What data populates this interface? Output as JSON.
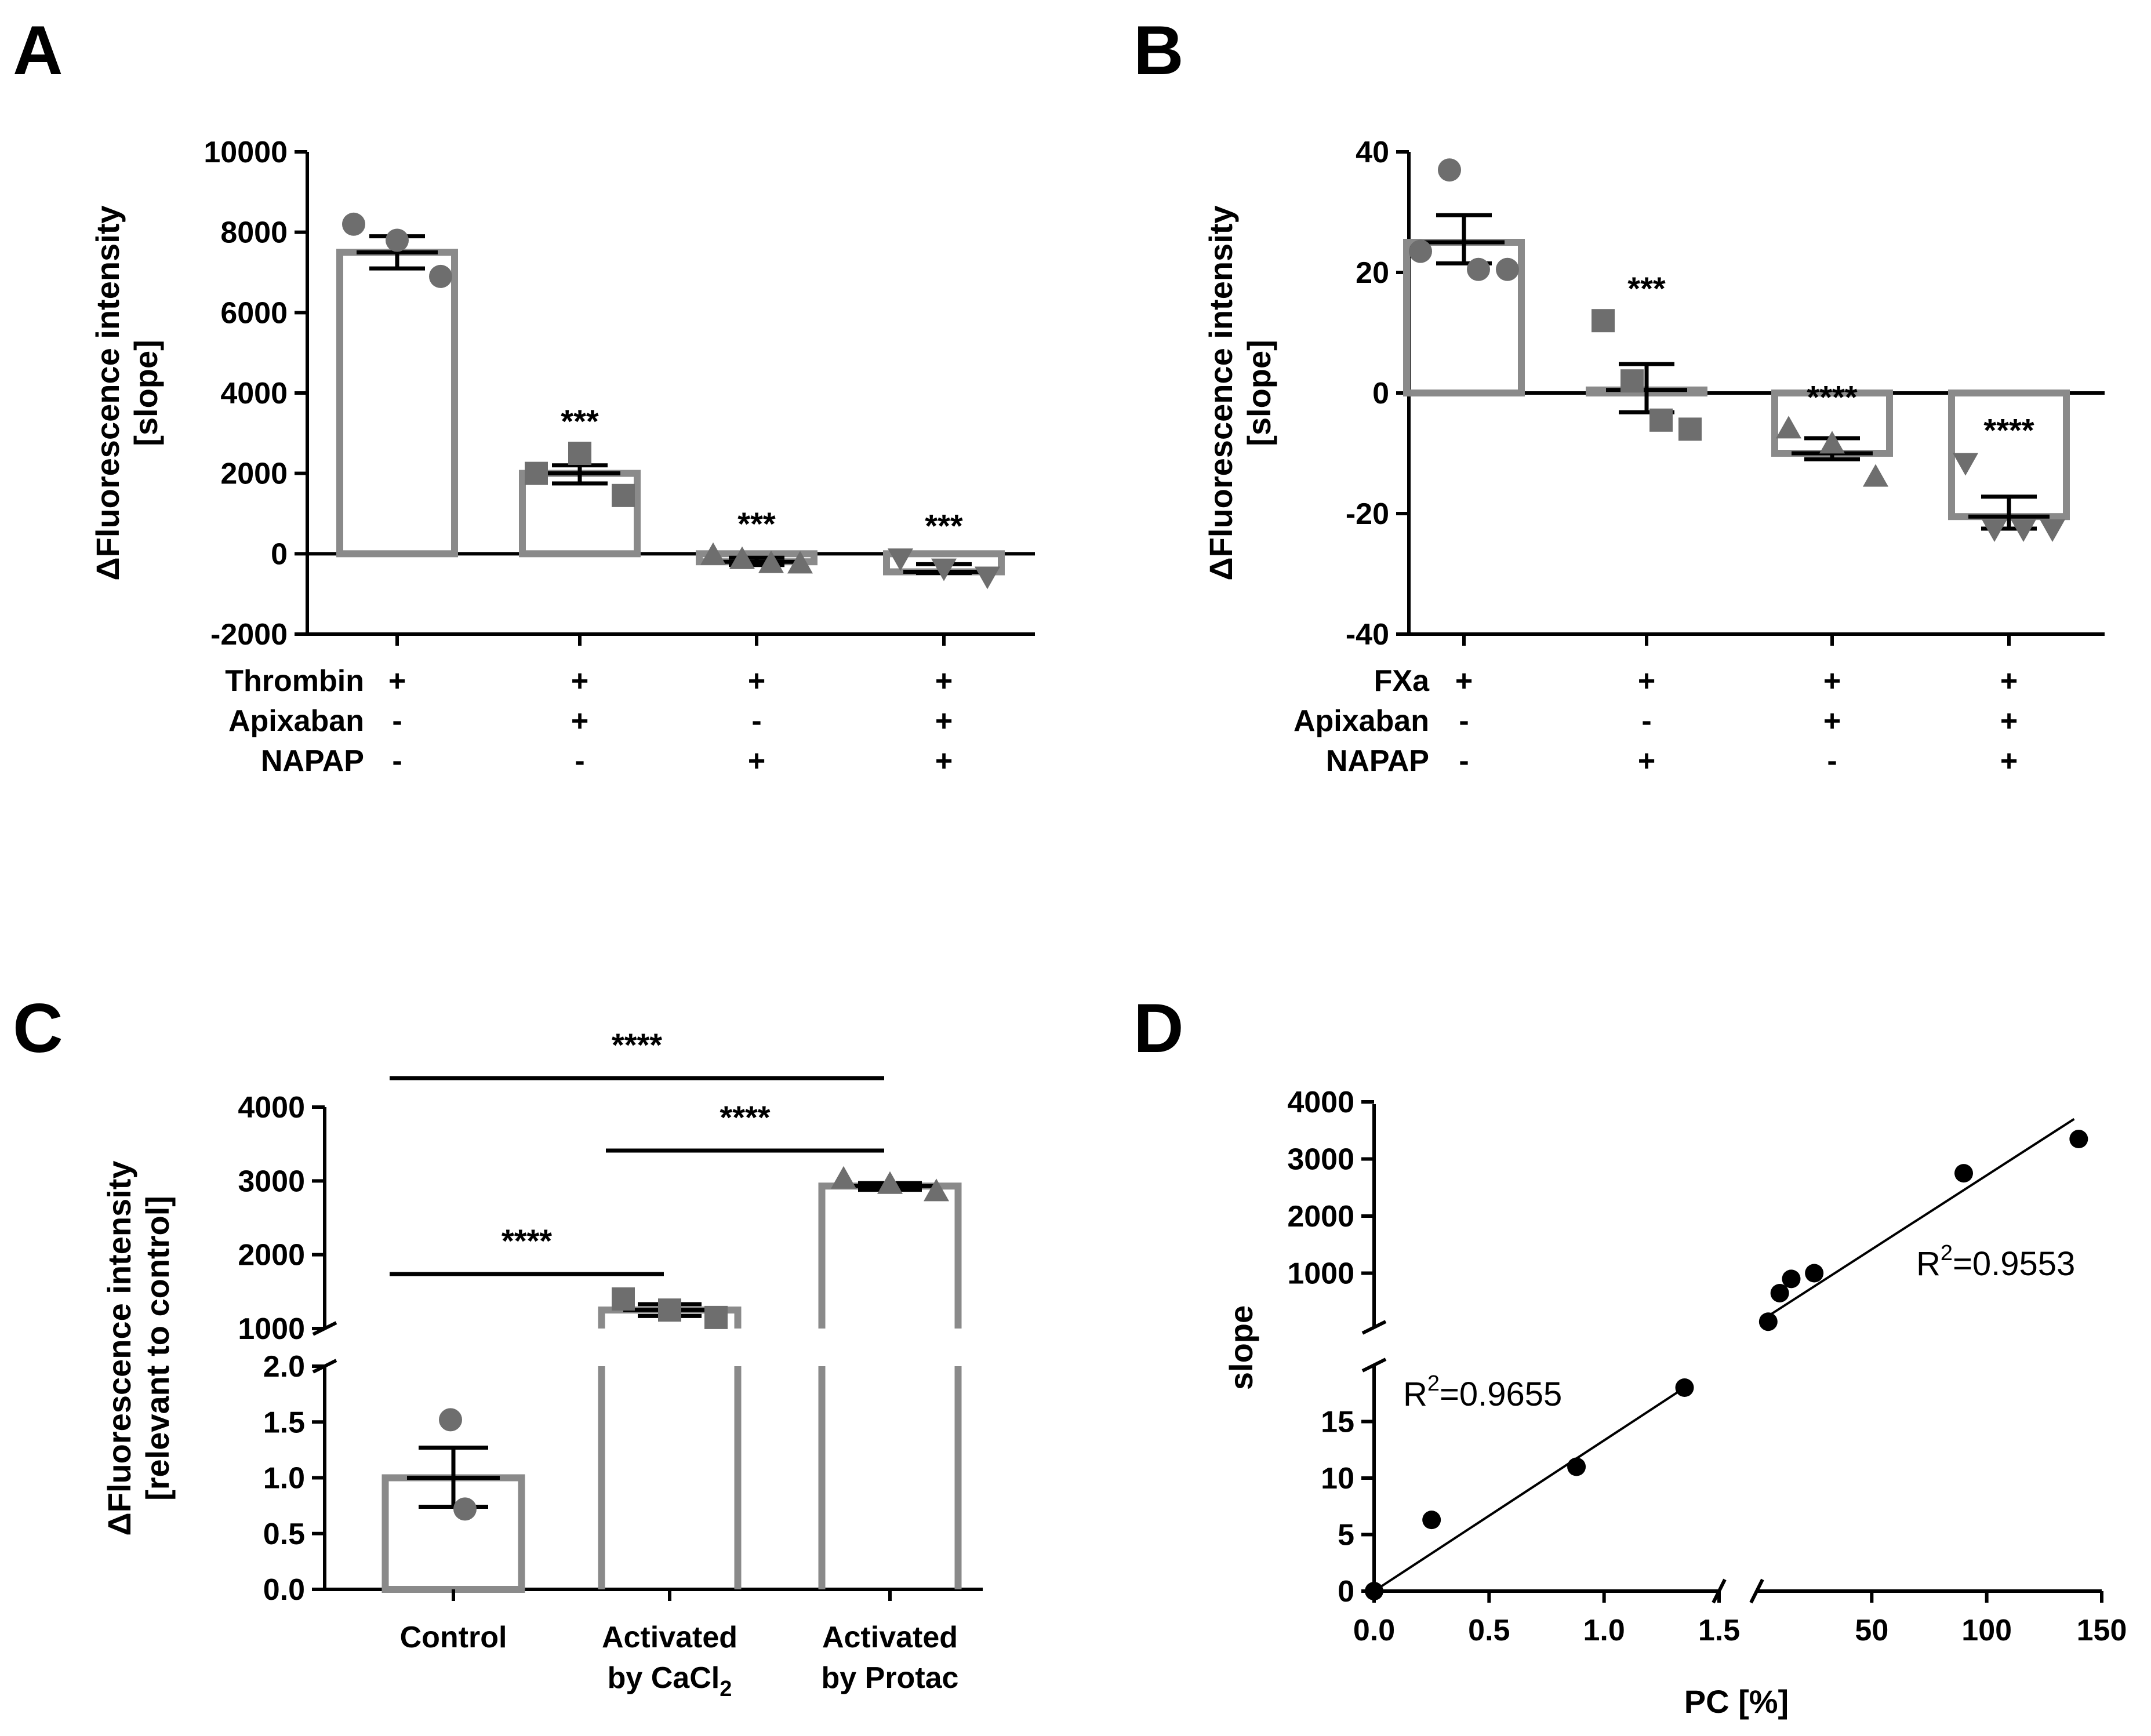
{
  "panels": {
    "A": {
      "letter": "A",
      "ylabel": [
        "ΔFluorescence intensity",
        "[slope]"
      ],
      "ylim": [
        -2000,
        10000
      ],
      "yticks": [
        -2000,
        0,
        2000,
        4000,
        6000,
        8000,
        10000
      ],
      "ytick_labels": [
        "-2000",
        "0",
        "2000",
        "4000",
        "6000",
        "8000",
        "10000"
      ],
      "bars": [
        {
          "mean": 7500,
          "err_low": 7100,
          "err_high": 7900,
          "points": [
            8200,
            7800,
            6900
          ],
          "marker": "circle",
          "sig": ""
        },
        {
          "mean": 2000,
          "err_low": 1750,
          "err_high": 2200,
          "points": [
            2000,
            2500,
            1450
          ],
          "marker": "square",
          "sig": "***"
        },
        {
          "mean": -200,
          "err_low": -280,
          "err_high": -100,
          "points": [
            -50,
            -150,
            -250,
            -260
          ],
          "marker": "triangle-up",
          "sig": "***"
        },
        {
          "mean": -450,
          "err_low": -480,
          "err_high": -260,
          "points": [
            -100,
            -350,
            -550
          ],
          "marker": "triangle-down",
          "sig": "***"
        }
      ],
      "conditions": [
        {
          "name": "Thrombin",
          "values": [
            "+",
            "+",
            "+",
            "+"
          ]
        },
        {
          "name": "Apixaban",
          "values": [
            "-",
            "+",
            "-",
            "+"
          ]
        },
        {
          "name": "NAPAP",
          "values": [
            "-",
            "-",
            "+",
            "+"
          ]
        }
      ]
    },
    "B": {
      "letter": "B",
      "ylabel": [
        "ΔFluorescence intensity",
        "[slope]"
      ],
      "ylim": [
        -40,
        40
      ],
      "yticks": [
        -40,
        -20,
        0,
        20,
        40
      ],
      "ytick_labels": [
        "-40",
        "-20",
        "0",
        "20",
        "40"
      ],
      "bars": [
        {
          "mean": 25,
          "err_low": 21.5,
          "err_high": 29.5,
          "points": [
            23.5,
            37,
            20.5,
            20.5
          ],
          "marker": "circle",
          "sig": ""
        },
        {
          "mean": 0.5,
          "err_low": -3.2,
          "err_high": 4.8,
          "points": [
            12,
            2,
            -4.5,
            -6
          ],
          "marker": "square",
          "sig": "***"
        },
        {
          "mean": -10,
          "err_low": -11,
          "err_high": -7.5,
          "points": [
            -6,
            -8.5,
            -14
          ],
          "marker": "triangle-up",
          "sig": "****"
        },
        {
          "mean": -20.5,
          "err_low": -22.5,
          "err_high": -17.2,
          "points": [
            -11.5,
            -22.5,
            -22.5,
            -22.5
          ],
          "marker": "triangle-down",
          "sig": "****"
        }
      ],
      "conditions": [
        {
          "name": "FXa",
          "values": [
            "+",
            "+",
            "+",
            "+"
          ]
        },
        {
          "name": "Apixaban",
          "values": [
            "-",
            "-",
            "+",
            "+"
          ]
        },
        {
          "name": "NAPAP",
          "values": [
            "-",
            "+",
            "-",
            "+"
          ]
        }
      ]
    },
    "C": {
      "letter": "C",
      "ylabel": [
        "ΔFluorescence intensity",
        "[relevant to control]"
      ],
      "upper_ylim": [
        1000,
        4000
      ],
      "upper_ticks": [
        "1000",
        "2000",
        "3000",
        "4000"
      ],
      "lower_ylim": [
        0,
        2
      ],
      "lower_ticks": [
        "0.0",
        "0.5",
        "1.0",
        "1.5",
        "2.0"
      ],
      "categories": [
        "Control",
        "Activated",
        "Activated"
      ],
      "categories_line2": [
        "",
        "by CaCl",
        "by Protac"
      ],
      "subscript": "2",
      "bars": [
        {
          "mean": 1.0,
          "err_low": 0.74,
          "err_high": 1.27,
          "points": [
            1.52,
            0.72
          ],
          "marker": "circle"
        },
        {
          "mean": 1250,
          "err_low": 1170,
          "err_high": 1330,
          "points": [
            1400,
            1250,
            1150
          ],
          "marker": "square"
        },
        {
          "mean": 2930,
          "err_low": 2880,
          "err_high": 2970,
          "points": [
            3020,
            2950,
            2850
          ],
          "marker": "triangle-up"
        }
      ],
      "comparisons": [
        {
          "from": 0,
          "to": 2,
          "label": "****"
        },
        {
          "from": 1,
          "to": 2,
          "label": "****"
        },
        {
          "from": 0,
          "to": 1,
          "label": "****"
        }
      ]
    },
    "D": {
      "letter": "D",
      "xlabel": "PC [%]",
      "ylabel": "slope",
      "left_x_ticks": [
        "0.0",
        "0.5",
        "1.0",
        "1.5"
      ],
      "right_x_ticks": [
        "50",
        "100",
        "150"
      ],
      "upper_y_ticks": [
        "1000",
        "2000",
        "3000",
        "4000"
      ],
      "lower_y_ticks": [
        "0",
        "5",
        "10",
        "15"
      ],
      "low_points": [
        [
          0,
          0
        ],
        [
          0.25,
          6.3
        ],
        [
          0.88,
          11
        ],
        [
          1.35,
          18
        ]
      ],
      "high_points": [
        [
          5,
          150
        ],
        [
          10,
          650
        ],
        [
          15,
          900
        ],
        [
          25,
          1000
        ],
        [
          90,
          2750
        ],
        [
          140,
          3350
        ]
      ],
      "fit_low": {
        "x1": 0,
        "y1": 0,
        "x2": 1.35,
        "y2": 18
      },
      "fit_high": {
        "x1": 5,
        "y1": 250,
        "x2": 138,
        "y2": 3700
      },
      "r2_low_prefix": "R",
      "r2_low_sup": "2",
      "r2_low_value": "=0.9655",
      "r2_high_prefix": "R",
      "r2_high_sup": "2",
      "r2_high_value": "=0.9553"
    }
  },
  "chart_data": [
    {
      "type": "bar",
      "panel": "A",
      "categories": [
        "Thrombin",
        "Thrombin+Apixaban",
        "Thrombin+NAPAP",
        "Thrombin+Apixaban+NAPAP"
      ],
      "values": [
        7500,
        2000,
        -200,
        -450
      ],
      "ylabel": "ΔFluorescence intensity [slope]",
      "ylim": [
        -2000,
        10000
      ]
    },
    {
      "type": "bar",
      "panel": "B",
      "categories": [
        "FXa",
        "FXa+NAPAP",
        "FXa+Apixaban",
        "FXa+Apixaban+NAPAP"
      ],
      "values": [
        25,
        0.5,
        -10,
        -20.5
      ],
      "ylabel": "ΔFluorescence intensity [slope]",
      "ylim": [
        -40,
        40
      ]
    },
    {
      "type": "bar",
      "panel": "C",
      "categories": [
        "Control",
        "Activated by CaCl2",
        "Activated by Protac"
      ],
      "values": [
        1.0,
        1250,
        2930
      ],
      "ylabel": "ΔFluorescence intensity [relevant to control]"
    },
    {
      "type": "scatter",
      "panel": "D",
      "x": [
        0,
        0.25,
        0.88,
        1.35,
        5,
        10,
        15,
        25,
        90,
        140
      ],
      "y": [
        0,
        6.3,
        11,
        18,
        150,
        650,
        900,
        1000,
        2750,
        3350
      ],
      "xlabel": "PC [%]",
      "ylabel": "slope"
    }
  ]
}
